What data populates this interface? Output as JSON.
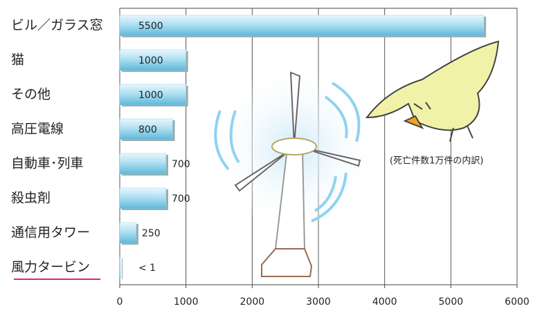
{
  "chart_data": {
    "type": "bar",
    "orientation": "horizontal",
    "categories": [
      "ビル／ガラス窓",
      "猫",
      "その他",
      "高圧電線",
      "自動車･列車",
      "殺虫剤",
      "通信用タワー",
      "風力タービン"
    ],
    "values": [
      5500,
      1000,
      1000,
      800,
      700,
      700,
      250,
      1
    ],
    "value_labels": [
      "5500",
      "1000",
      "1000",
      "800",
      "700",
      "700",
      "250",
      "< 1"
    ],
    "color": "#8fd0ea",
    "xlim": [
      0,
      6000
    ],
    "xticks": [
      0,
      1000,
      2000,
      3000,
      4000,
      5000,
      6000
    ],
    "grid": true,
    "annotation": "(死亡件数1万件の内訳)"
  }
}
